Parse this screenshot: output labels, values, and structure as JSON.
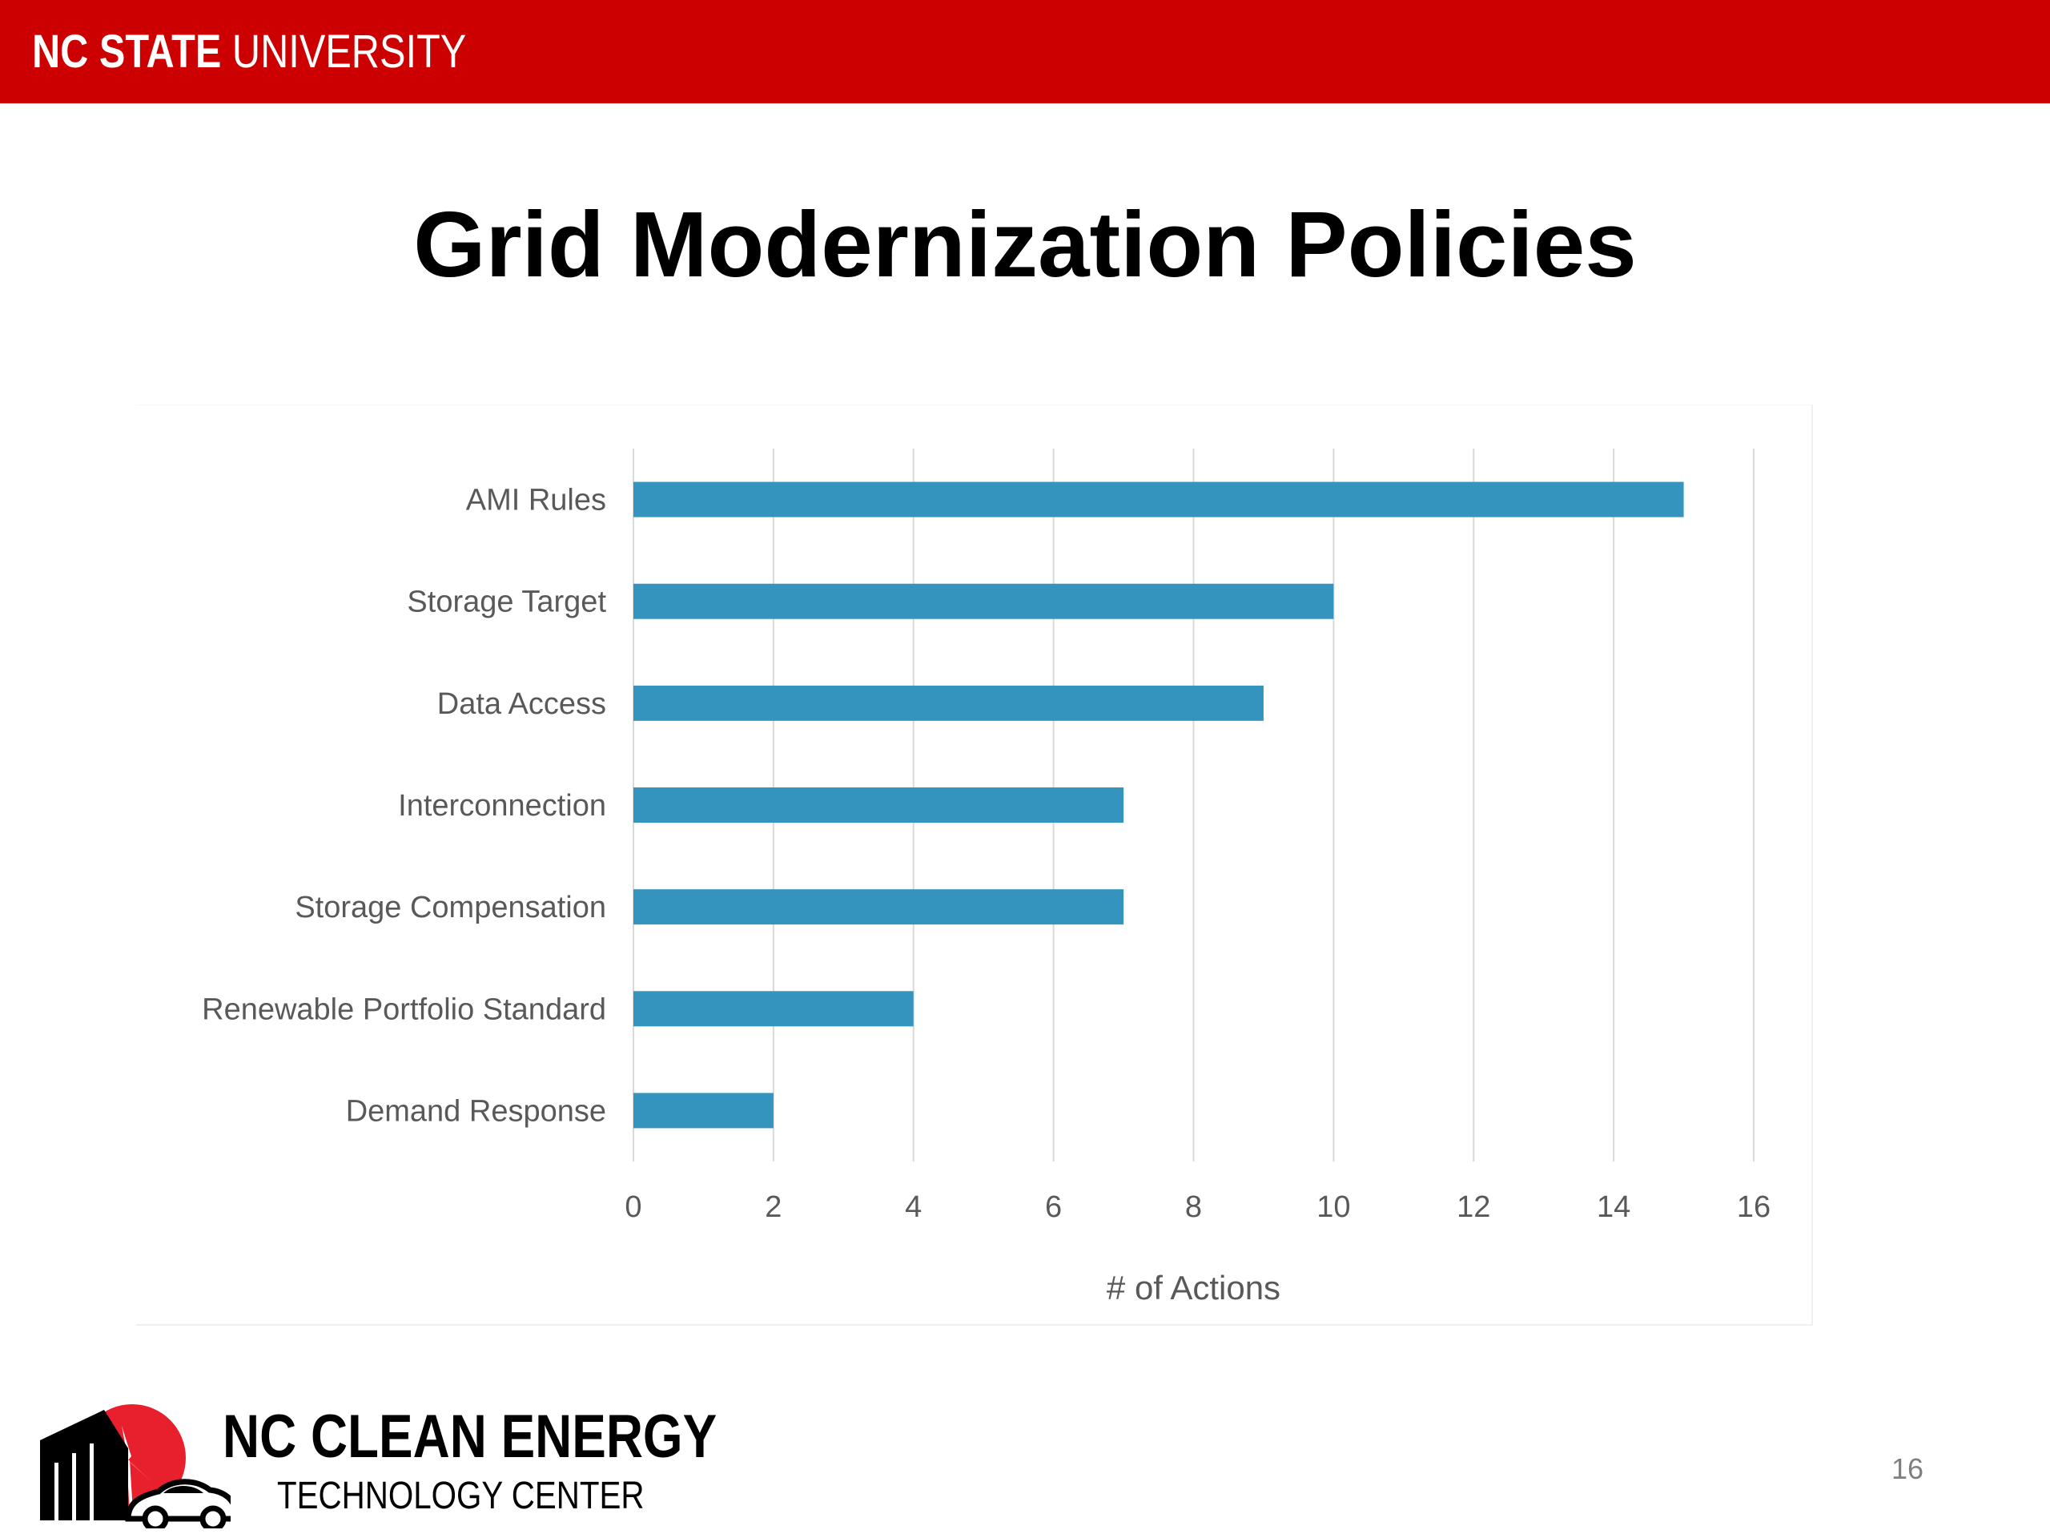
{
  "header": {
    "brand_bold": "NC STATE",
    "brand_light": "UNIVERSITY",
    "bar_color": "#cc0000"
  },
  "slide": {
    "title": "Grid Modernization Policies",
    "page_number": "16"
  },
  "footer": {
    "logo_line1": "NC CLEAN ENERGY",
    "logo_line2": "TECHNOLOGY CENTER",
    "logo_icons": [
      "sun-icon",
      "wind-turbine-icon",
      "building-icon",
      "car-icon"
    ]
  },
  "chart_data": {
    "type": "bar",
    "orientation": "horizontal",
    "categories": [
      "AMI Rules",
      "Storage Target",
      "Data Access",
      "Interconnection",
      "Storage Compensation",
      "Renewable Portfolio Standard",
      "Demand Response"
    ],
    "values": [
      15,
      10,
      9,
      7,
      7,
      4,
      2
    ],
    "xlabel": "# of Actions",
    "ylabel": "",
    "xlim": [
      0,
      16
    ],
    "xticks": [
      "0",
      "2",
      "4",
      "6",
      "8",
      "10",
      "12",
      "14",
      "16"
    ],
    "grid": "vertical",
    "bar_color": "#3594bd",
    "grid_color": "#d9d9d9",
    "label_color": "#595959"
  }
}
